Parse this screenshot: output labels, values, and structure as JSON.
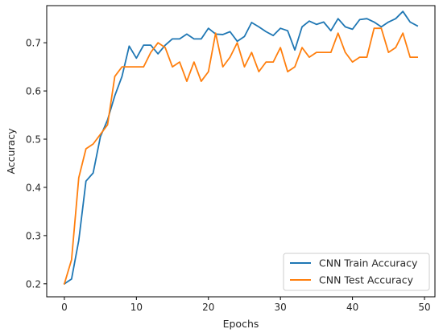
{
  "chart_data": {
    "type": "line",
    "title": "",
    "xlabel": "Epochs",
    "ylabel": "Accuracy",
    "xlim": [
      -2.45,
      51.45
    ],
    "ylim": [
      0.173,
      0.777
    ],
    "x_ticks": [
      0,
      10,
      20,
      30,
      40,
      50
    ],
    "x_tick_labels": [
      "0",
      "10",
      "20",
      "30",
      "40",
      "50"
    ],
    "y_ticks": [
      0.2,
      0.3,
      0.4,
      0.5,
      0.6,
      0.7
    ],
    "y_tick_labels": [
      "0.2",
      "0.3",
      "0.4",
      "0.5",
      "0.6",
      "0.7"
    ],
    "grid": false,
    "legend_position": "lower-right",
    "x": [
      0,
      1,
      2,
      3,
      4,
      5,
      6,
      7,
      8,
      9,
      10,
      11,
      12,
      13,
      14,
      15,
      16,
      17,
      18,
      19,
      20,
      21,
      22,
      23,
      24,
      25,
      26,
      27,
      28,
      29,
      30,
      31,
      32,
      33,
      34,
      35,
      36,
      37,
      38,
      39,
      40,
      41,
      42,
      43,
      44,
      45,
      46,
      47,
      48,
      49
    ],
    "series": [
      {
        "name": "CNN Train Accuracy",
        "color": "#1f77b4",
        "values": [
          0.2,
          0.21,
          0.29,
          0.413,
          0.43,
          0.505,
          0.54,
          0.59,
          0.63,
          0.693,
          0.668,
          0.695,
          0.695,
          0.677,
          0.695,
          0.708,
          0.708,
          0.718,
          0.708,
          0.708,
          0.73,
          0.718,
          0.717,
          0.723,
          0.703,
          0.713,
          0.742,
          0.733,
          0.723,
          0.715,
          0.73,
          0.725,
          0.685,
          0.733,
          0.745,
          0.738,
          0.743,
          0.725,
          0.75,
          0.733,
          0.728,
          0.748,
          0.75,
          0.743,
          0.733,
          0.743,
          0.75,
          0.765,
          0.743,
          0.735
        ]
      },
      {
        "name": "CNN Test Accuracy",
        "color": "#ff7f0e",
        "values": [
          0.2,
          0.25,
          0.42,
          0.48,
          0.49,
          0.51,
          0.53,
          0.63,
          0.65,
          0.65,
          0.65,
          0.65,
          0.68,
          0.7,
          0.69,
          0.65,
          0.66,
          0.62,
          0.66,
          0.62,
          0.64,
          0.72,
          0.65,
          0.67,
          0.7,
          0.65,
          0.68,
          0.64,
          0.66,
          0.66,
          0.69,
          0.64,
          0.65,
          0.69,
          0.67,
          0.68,
          0.68,
          0.68,
          0.72,
          0.68,
          0.66,
          0.67,
          0.67,
          0.73,
          0.73,
          0.68,
          0.69,
          0.72,
          0.67,
          0.67
        ]
      }
    ]
  }
}
